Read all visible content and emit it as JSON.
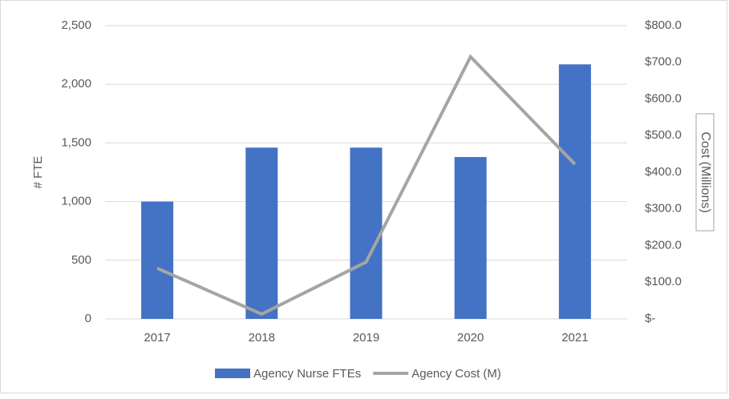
{
  "chart_data": {
    "type": "bar_line",
    "categories": [
      "2017",
      "2018",
      "2019",
      "2020",
      "2021"
    ],
    "series": [
      {
        "name": "Agency Nurse FTEs",
        "type": "bar",
        "color": "#4472c4",
        "values": [
          1000,
          1460,
          1460,
          1380,
          2170
        ]
      },
      {
        "name": "Agency Cost (M)",
        "type": "line",
        "axis": "y2",
        "color": "#a5a5a5",
        "values": [
          138,
          13,
          155,
          715,
          422
        ]
      }
    ],
    "y_label": "# FTE",
    "y2_label": "Cost (Millions)",
    "ylim": [
      0,
      2500
    ],
    "yticks": [
      0,
      500,
      {
        "value": 1000,
        "label": "1,000"
      },
      {
        "value": 1500,
        "label": "1,500"
      },
      {
        "value": 2000,
        "label": "2,000"
      },
      {
        "value": 2500,
        "label": "2,500"
      }
    ],
    "y2lim": [
      0,
      800
    ],
    "y2ticks": [
      {
        "value": 0,
        "label": "$-"
      },
      {
        "value": 100,
        "label": "$100.0"
      },
      {
        "value": 200,
        "label": "$200.0"
      },
      {
        "value": 300,
        "label": "$300.0"
      },
      {
        "value": 400,
        "label": "$400.0"
      },
      {
        "value": 500,
        "label": "$500.0"
      },
      {
        "value": 600,
        "label": "$600.0"
      },
      {
        "value": 700,
        "label": "$700.0"
      },
      {
        "value": 800,
        "label": "$800.0"
      }
    ],
    "grid": true,
    "legend": "bottom"
  }
}
